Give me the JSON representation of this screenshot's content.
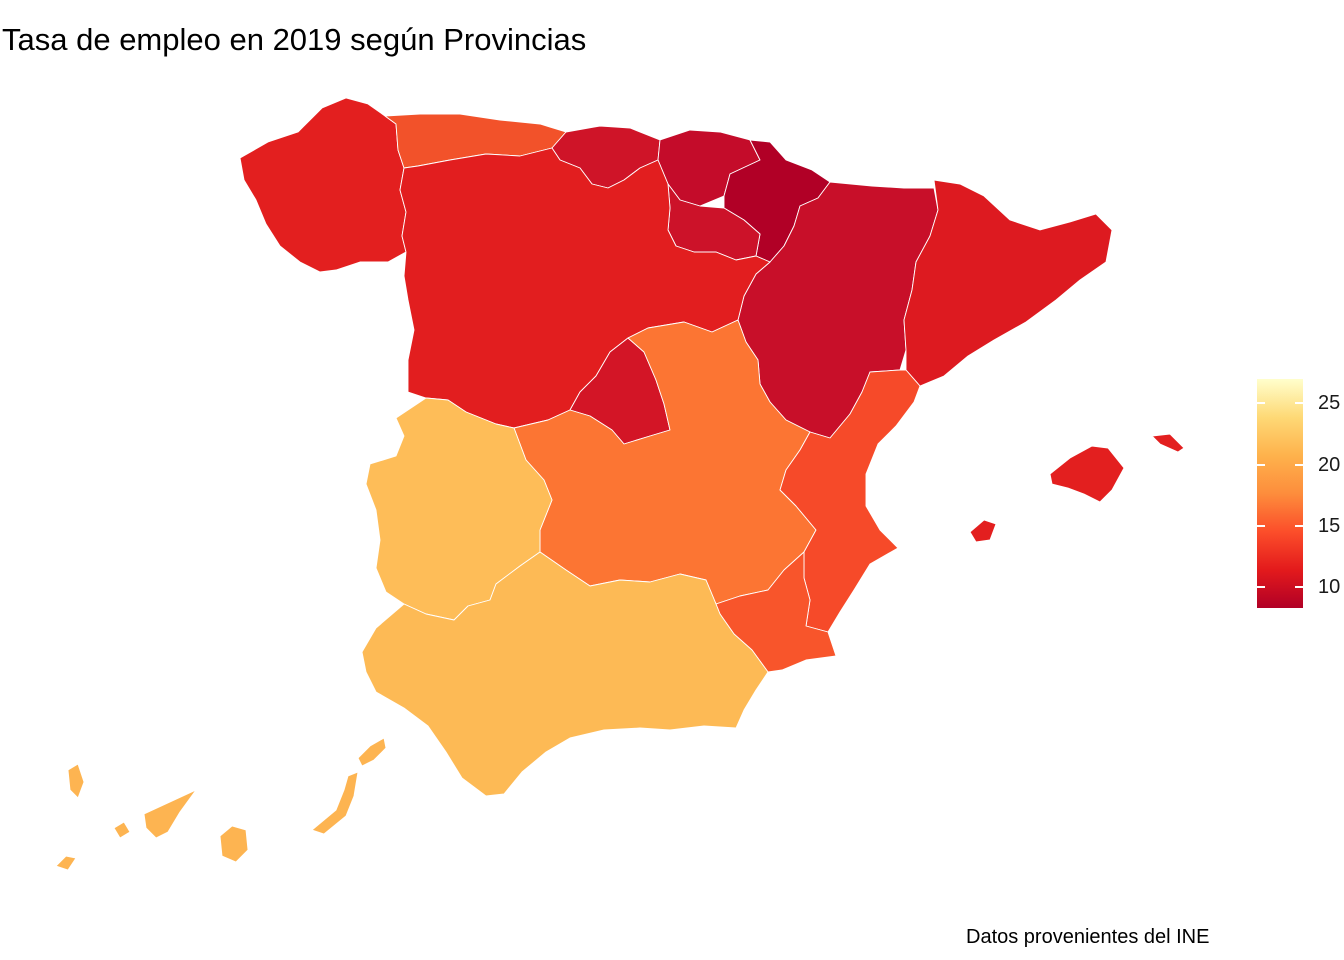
{
  "title": "Tasa de empleo en 2019 según Provincias",
  "caption": "Datos provenientes del INE",
  "legend": {
    "min": 8.3,
    "max": 27,
    "ticks": [
      {
        "value": 25,
        "label": "25"
      },
      {
        "value": 20,
        "label": "20"
      },
      {
        "value": 15,
        "label": "15"
      },
      {
        "value": 10,
        "label": "10"
      }
    ],
    "palette": [
      "#b10026",
      "#e31a1c",
      "#fc4e2a",
      "#fd8d3c",
      "#feb24c",
      "#fed976",
      "#ffffcc"
    ]
  },
  "regions": [
    {
      "name": "Galicia",
      "value": 11.8,
      "color": "#e31f1f"
    },
    {
      "name": "Asturias",
      "value": 14.0,
      "color": "#f2522a"
    },
    {
      "name": "Cantabria",
      "value": 10.4,
      "color": "#cf1428"
    },
    {
      "name": "País Vasco",
      "value": 9.6,
      "color": "#c40c2a"
    },
    {
      "name": "Navarra",
      "value": 8.3,
      "color": "#b10026"
    },
    {
      "name": "La Rioja",
      "value": 10.2,
      "color": "#cc1229"
    },
    {
      "name": "Aragón",
      "value": 10.0,
      "color": "#c80f29"
    },
    {
      "name": "Cataluña",
      "value": 11.0,
      "color": "#dd1a20"
    },
    {
      "name": "Castilla y León",
      "value": 11.6,
      "color": "#e21e1f"
    },
    {
      "name": "Madrid",
      "value": 10.5,
      "color": "#d31526"
    },
    {
      "name": "Castilla-La Mancha",
      "value": 16.2,
      "color": "#fc7533"
    },
    {
      "name": "Comunitat Valenciana",
      "value": 14.1,
      "color": "#f64a29"
    },
    {
      "name": "Región de Murcia",
      "value": 14.7,
      "color": "#f8552b"
    },
    {
      "name": "Extremadura",
      "value": 21.5,
      "color": "#febd58"
    },
    {
      "name": "Andalucía",
      "value": 21.2,
      "color": "#fdba55"
    },
    {
      "name": "Illes Balears",
      "value": 11.8,
      "color": "#e31f1f"
    },
    {
      "name": "Canarias",
      "value": 20.5,
      "color": "#fdb451"
    }
  ]
}
